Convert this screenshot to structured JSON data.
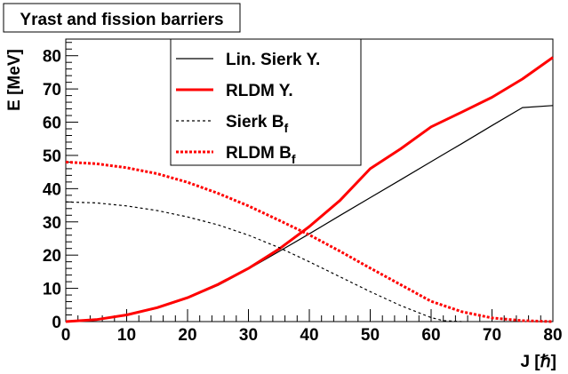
{
  "chart_data": {
    "type": "line",
    "title": "Yrast and fission barriers",
    "xlabel": "J [ℏ]",
    "ylabel": "E [MeV]",
    "xlim": [
      0,
      80
    ],
    "ylim": [
      0,
      85
    ],
    "x_ticks": [
      "0",
      "10",
      "20",
      "30",
      "40",
      "50",
      "60",
      "70",
      "80"
    ],
    "y_ticks": [
      "0",
      "10",
      "20",
      "30",
      "40",
      "50",
      "60",
      "70",
      "80"
    ],
    "grid": false,
    "legend_position": "top-center",
    "series": [
      {
        "name": "Lin. Sierk Y.",
        "legend_main": "Lin. Sierk Y.",
        "legend_sub": "",
        "color": "#000000",
        "style": "solid",
        "width": 1.2,
        "points": [
          [
            0,
            0
          ],
          [
            5,
            0.6
          ],
          [
            10,
            1.9
          ],
          [
            15,
            4.0
          ],
          [
            20,
            7.0
          ],
          [
            25,
            10.9
          ],
          [
            30,
            15.8
          ],
          [
            35,
            21.1
          ],
          [
            40,
            26.4
          ],
          [
            45,
            31.9
          ],
          [
            50,
            37.3
          ],
          [
            55,
            42.7
          ],
          [
            60,
            48.1
          ],
          [
            65,
            53.5
          ],
          [
            70,
            59.0
          ],
          [
            75,
            64.4
          ],
          [
            80,
            65.0
          ]
        ]
      },
      {
        "name": "RLDM Y.",
        "legend_main": "RLDM Y.",
        "legend_sub": "",
        "color": "#ff0000",
        "style": "solid",
        "width": 3,
        "points": [
          [
            0,
            0
          ],
          [
            5,
            0.6
          ],
          [
            10,
            2.0
          ],
          [
            15,
            4.2
          ],
          [
            20,
            7.2
          ],
          [
            25,
            11.2
          ],
          [
            30,
            16.0
          ],
          [
            35,
            21.8
          ],
          [
            40,
            28.6
          ],
          [
            45,
            36.4
          ],
          [
            50,
            46.0
          ],
          [
            55,
            52.0
          ],
          [
            60,
            58.6
          ],
          [
            65,
            63.0
          ],
          [
            70,
            67.5
          ],
          [
            75,
            73.0
          ],
          [
            80,
            79.5
          ]
        ]
      },
      {
        "name": "Sierk Bf",
        "legend_main": "Sierk B",
        "legend_sub": "f",
        "color": "#000000",
        "style": "dashed",
        "width": 1.2,
        "points": [
          [
            0,
            36.0
          ],
          [
            5,
            35.7
          ],
          [
            10,
            34.8
          ],
          [
            15,
            33.4
          ],
          [
            20,
            31.5
          ],
          [
            25,
            29.1
          ],
          [
            30,
            26.0
          ],
          [
            35,
            22.3
          ],
          [
            40,
            18.0
          ],
          [
            45,
            13.5
          ],
          [
            50,
            9.0
          ],
          [
            55,
            4.8
          ],
          [
            60,
            1.2
          ],
          [
            62,
            0.3
          ],
          [
            65,
            0
          ]
        ]
      },
      {
        "name": "RLDM Bf",
        "legend_main": "RLDM B",
        "legend_sub": "f",
        "color": "#ff0000",
        "style": "dashed",
        "width": 3,
        "points": [
          [
            0,
            48.0
          ],
          [
            5,
            47.5
          ],
          [
            10,
            46.3
          ],
          [
            15,
            44.5
          ],
          [
            20,
            41.9
          ],
          [
            25,
            38.6
          ],
          [
            30,
            34.8
          ],
          [
            35,
            30.5
          ],
          [
            40,
            26.1
          ],
          [
            45,
            21.2
          ],
          [
            50,
            16.1
          ],
          [
            55,
            11.1
          ],
          [
            60,
            6.1
          ],
          [
            65,
            3.0
          ],
          [
            70,
            1.1
          ],
          [
            75,
            0.3
          ],
          [
            80,
            0
          ]
        ]
      }
    ]
  }
}
